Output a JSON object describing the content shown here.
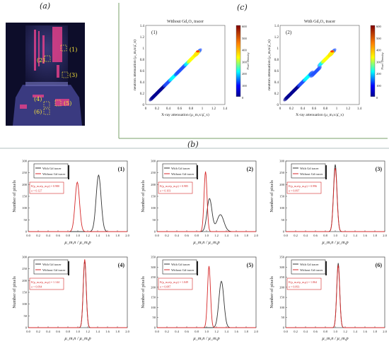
{
  "figure": {
    "label_a": "(a)",
    "label_b": "(b)",
    "label_c": "(c)"
  },
  "panel_a": {
    "regions": [
      "(1)",
      "(2)",
      "(3)",
      "(4)",
      "(5)",
      "(6)"
    ]
  },
  "panel_c": {
    "plots": [
      {
        "id": "(1)",
        "title": "Without Gd₂O₃ tracer",
        "xlabel": "X-ray attenuation (μ_m,x/μ̄_x)",
        "ylabel": "neutron attenuation (μ_m,n/μ̄_n)",
        "colorbar_label": "Pixel Density",
        "colorbar_ticks": [
          "600",
          "500",
          "400",
          "300",
          "200",
          "100",
          "0"
        ],
        "xticks": [
          "0",
          "0.2",
          "0.4",
          "0.6",
          "0.8",
          "1",
          "1.2",
          "1.4"
        ],
        "yticks": [
          "1.4",
          "1.2",
          "1",
          "0.8",
          "0.6",
          "0.4",
          "0.2",
          "0"
        ]
      },
      {
        "id": "(2)",
        "title": "With Gd₂O₃ tracer",
        "xlabel": "X-ray attenuation (μ_m,x/μ̄_x)",
        "ylabel": "neutron attenuation (μ_m,n/μ̄_n)",
        "colorbar_label": "Pixel Density",
        "colorbar_ticks": [
          "600",
          "500",
          "400",
          "300",
          "200",
          "100",
          "0"
        ],
        "xticks": [
          "0",
          "0.2",
          "0.4",
          "0.6",
          "0.8",
          "1",
          "1.2",
          "1.4"
        ],
        "yticks": [
          "1.4",
          "1.2",
          "1",
          "0.8",
          "0.6",
          "0.4",
          "0.2",
          "0"
        ]
      }
    ]
  },
  "chart_data": {
    "type": "line",
    "xlabel": "μ_m,n / μ_m,p",
    "ylabel": "Number of pixels",
    "xlim": [
      0,
      2.0
    ],
    "xticks": [
      "0.0",
      "0.2",
      "0.4",
      "0.6",
      "0.8",
      "1.0",
      "1.2",
      "1.4",
      "1.6",
      "1.8",
      "2.0"
    ],
    "legend": [
      "With Gd tracer",
      "Without Gd tracer"
    ],
    "colors": {
      "with": "#333333",
      "without": "#d62728"
    },
    "subplots": [
      {
        "id": "(1)",
        "ylim": [
          0,
          300
        ],
        "yticks": [
          "0",
          "50",
          "100",
          "150",
          "200",
          "250",
          "300"
        ],
        "stat_line": "E(μ_m,n/μ_m,p) = 0.980",
        "sigma_line": "σ = 0.127",
        "with_peak": {
          "x": 1.42,
          "h": 240,
          "w": 0.05
        },
        "without_peak": {
          "x": 0.99,
          "h": 210,
          "w": 0.045
        }
      },
      {
        "id": "(2)",
        "ylim": [
          0,
          300
        ],
        "yticks": [
          "0",
          "50",
          "100",
          "150",
          "200",
          "250",
          "300"
        ],
        "stat_line": "E(μ_m,n/μ_m,p) = 0.985",
        "sigma_line": "σ = 0.103",
        "with_peak": {
          "x": 1.06,
          "h": 140,
          "w": 0.05
        },
        "with_peak2": {
          "x": 1.28,
          "h": 72,
          "w": 0.07
        },
        "without_peak": {
          "x": 0.98,
          "h": 255,
          "w": 0.03
        }
      },
      {
        "id": "(3)",
        "ylim": [
          0,
          300
        ],
        "yticks": [
          "0",
          "50",
          "100",
          "150",
          "200",
          "250",
          "300"
        ],
        "stat_line": "E(μ_m,n/μ_m,p) = 0.996",
        "sigma_line": "σ = 0.097",
        "with_peak": {
          "x": 1.0,
          "h": 285,
          "w": 0.035
        },
        "without_peak": {
          "x": 1.0,
          "h": 270,
          "w": 0.035
        }
      },
      {
        "id": "(4)",
        "ylim": [
          0,
          300
        ],
        "yticks": [
          "0",
          "50",
          "100",
          "150",
          "200",
          "250",
          "300"
        ],
        "stat_line": "E(μ_m,n/μ_m,p) = 1.144",
        "sigma_line": "σ = 0.094",
        "with_peak": {
          "x": 1.14,
          "h": 285,
          "w": 0.03
        },
        "without_peak": {
          "x": 1.14,
          "h": 290,
          "w": 0.03
        }
      },
      {
        "id": "(5)",
        "ylim": [
          0,
          350
        ],
        "yticks": [
          "0",
          "50",
          "100",
          "150",
          "200",
          "250",
          "300",
          "350"
        ],
        "stat_line": "E(μ_m,n/μ_m,p) = 1.049",
        "sigma_line": "σ = 0.087",
        "with_peak": {
          "x": 1.3,
          "h": 230,
          "w": 0.05
        },
        "without_peak": {
          "x": 1.05,
          "h": 305,
          "w": 0.03
        }
      },
      {
        "id": "(6)",
        "ylim": [
          0,
          350
        ],
        "yticks": [
          "0",
          "50",
          "100",
          "150",
          "200",
          "250",
          "300",
          "350"
        ],
        "stat_line": "E(μ_m,n/μ_m,p) = 1.064",
        "sigma_line": "σ = 0.093",
        "with_peak": {
          "x": 1.06,
          "h": 320,
          "w": 0.03
        },
        "without_peak": {
          "x": 1.06,
          "h": 310,
          "w": 0.03
        }
      }
    ]
  }
}
